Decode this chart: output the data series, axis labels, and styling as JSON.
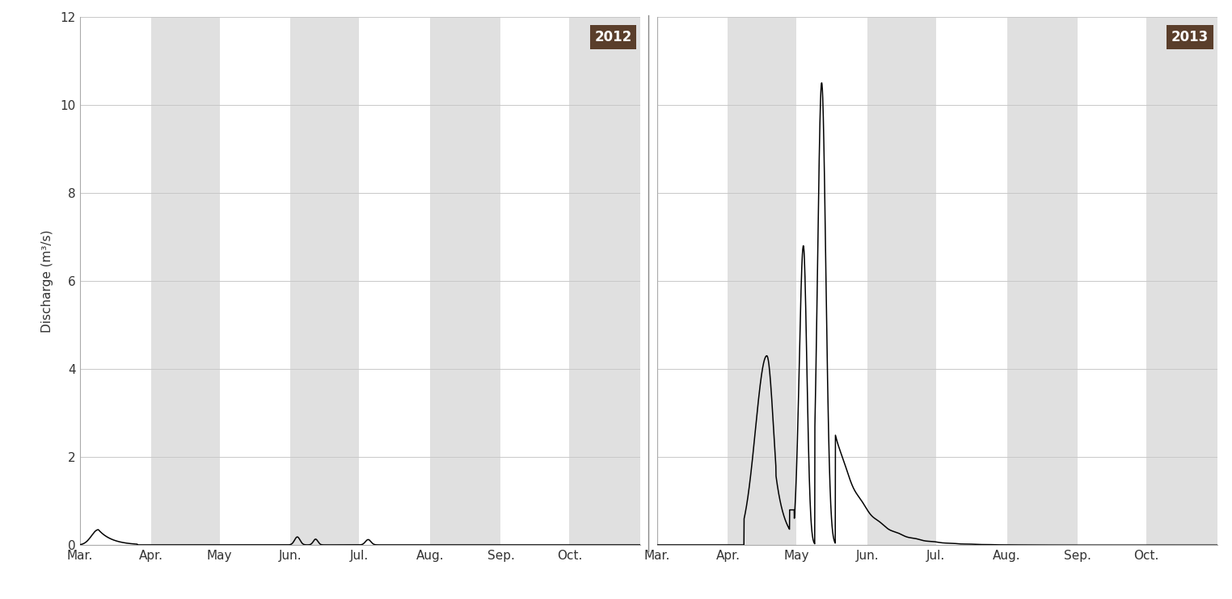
{
  "title_2012": "2012",
  "title_2013": "2013",
  "ylabel": "Discharge (m³/s)",
  "ylim": [
    0,
    12
  ],
  "yticks": [
    0,
    2,
    4,
    6,
    8,
    10,
    12
  ],
  "months": [
    "Mar.",
    "Apr.",
    "May",
    "Jun.",
    "Jul.",
    "Aug.",
    "Sep.",
    "Oct."
  ],
  "band_color": "#e0e0e0",
  "bg_color": "#ffffff",
  "line_color": "#000000",
  "title_bg": "#5a3e2b",
  "title_text_color": "#ffffff",
  "grid_color": "#c8c8c8",
  "days_per_month": [
    31,
    30,
    31,
    30,
    31,
    31,
    30,
    31
  ],
  "month_starts": [
    0,
    31,
    61,
    92,
    122,
    153,
    184,
    214
  ],
  "total_days": 245
}
